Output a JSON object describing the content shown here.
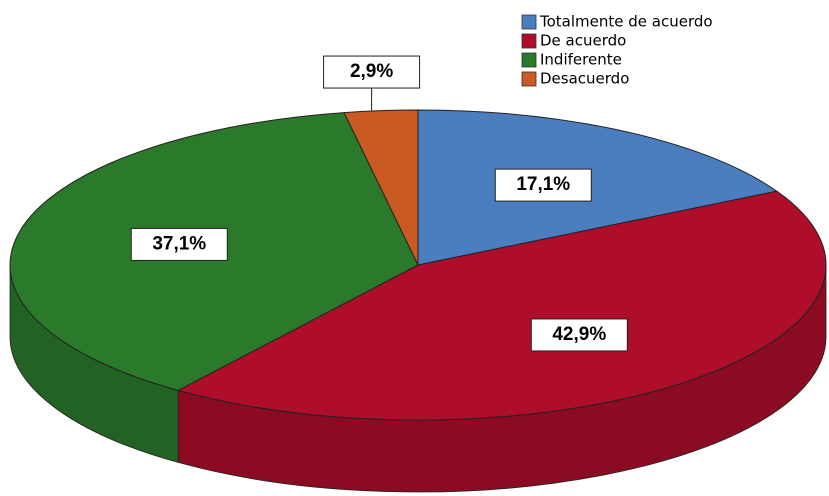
{
  "chart_data": {
    "type": "pie",
    "categories": [
      "Totalmente de acuerdo",
      "De acuerdo",
      "Indiferente",
      "Desacuerdo"
    ],
    "values": [
      17.1,
      42.9,
      37.1,
      2.9
    ],
    "value_labels": [
      "17,1%",
      "42,9%",
      "37,1%",
      "2,9%"
    ],
    "colors": [
      "#4a7ebf",
      "#ae0e2a",
      "#2b7a2b",
      "#c85a22"
    ],
    "legend": "top-right"
  }
}
